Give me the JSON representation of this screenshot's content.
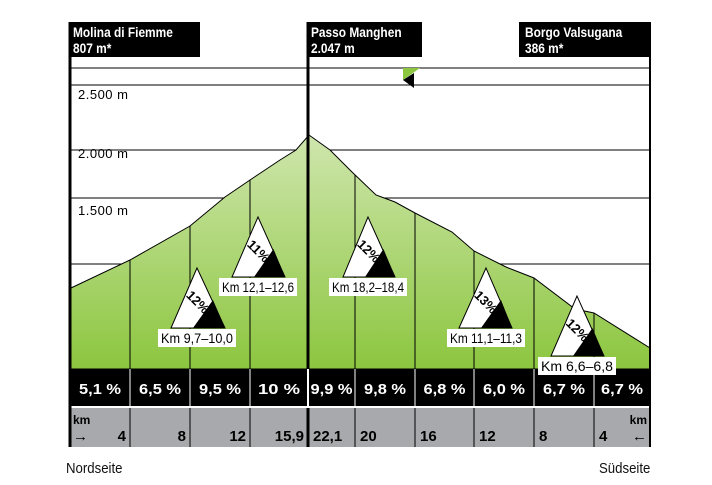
{
  "start": {
    "name": "Molina di Fiemme",
    "elevation": "807 m*"
  },
  "summit": {
    "name": "Passo Manghen",
    "elevation": "2.047 m"
  },
  "finish": {
    "name": "Borgo Valsugana",
    "elevation": "386 m*"
  },
  "y_axis_labels": [
    "2.500 m",
    "2.000 m",
    "1.500 m"
  ],
  "gradients": [
    "5,1 %",
    "6,5 %",
    "9,5 %",
    "10 %",
    "9,9 %",
    "9,8 %",
    "6,8 %",
    "6,0 %",
    "6,7 %",
    "6,7 %"
  ],
  "km_unit": "km",
  "km_left": [
    "4",
    "8",
    "12",
    "15,9"
  ],
  "km_right": [
    "22,1",
    "20",
    "16",
    "12",
    "8",
    "4"
  ],
  "arrow_right": "→",
  "arrow_left": "←",
  "steep_sections": [
    {
      "percent": "12%",
      "range": "Km 9,7–10,0"
    },
    {
      "percent": "11%",
      "range": "Km 12,1–12,6"
    },
    {
      "percent": "12%",
      "range": "Km 18,2–18,4"
    },
    {
      "percent": "13%",
      "range": "Km 11,1–11,3"
    },
    {
      "percent": "12%",
      "range": "Km 6,6–6,8"
    }
  ],
  "footer": {
    "left": "Nordseite",
    "right": "Südseite"
  },
  "colors": {
    "green_top": "#c9e3a3",
    "green_bottom": "#8cc63f",
    "gray": "#a7a9ac",
    "black": "#000000"
  }
}
